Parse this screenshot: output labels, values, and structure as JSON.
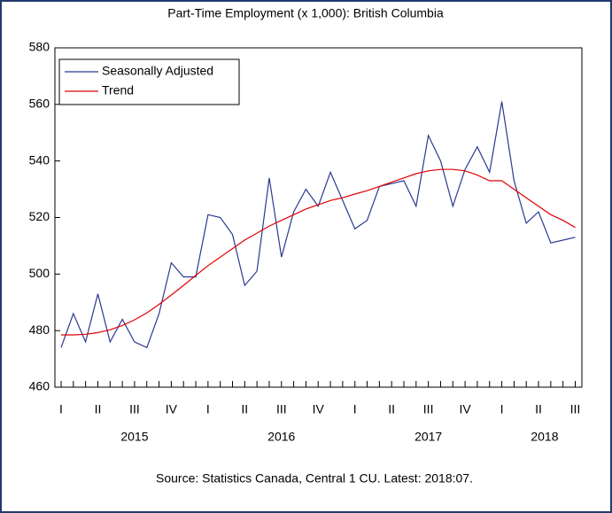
{
  "chart_data": {
    "type": "line",
    "title": "Part-Time Employment (x 1,000): British Columbia",
    "source": "Source: Statistics Canada, Central 1 CU. Latest: 2018:07.",
    "categories": [
      "I",
      null,
      null,
      "II",
      null,
      null,
      "III",
      null,
      null,
      "IV",
      null,
      null,
      "I",
      null,
      null,
      "II",
      null,
      null,
      "III",
      null,
      null,
      "IV",
      null,
      null,
      "I",
      null,
      null,
      "II",
      null,
      null,
      "III",
      null,
      null,
      "IV",
      null,
      null,
      "I",
      null,
      null,
      "II",
      null,
      null,
      "III"
    ],
    "years": [
      "2015",
      "2016",
      "2017",
      "2018"
    ],
    "series": [
      {
        "name": "Seasonally Adjusted",
        "color": "#2b3990",
        "values": [
          474,
          486,
          476,
          493,
          476,
          484,
          476,
          474,
          486,
          504,
          499,
          499,
          521,
          520,
          514,
          496,
          501,
          534,
          506,
          522,
          530,
          524,
          536,
          526,
          516,
          519,
          531,
          532,
          533,
          524,
          549,
          540,
          524,
          537,
          545,
          536,
          561,
          533,
          518,
          522,
          511,
          512,
          513
        ]
      },
      {
        "name": "Trend",
        "color": "#e00000",
        "values": [
          478.5,
          478.5,
          478.7,
          479.3,
          480.3,
          481.8,
          483.8,
          486.3,
          489.3,
          492.6,
          496,
          499.5,
          503,
          506,
          509,
          512,
          514.5,
          517,
          519,
          521,
          523,
          524.5,
          526,
          527,
          528.3,
          529.5,
          531,
          532.5,
          534,
          535.5,
          536.5,
          537,
          537,
          536.5,
          535,
          533,
          533,
          530,
          527,
          524,
          521,
          519,
          516.5
        ]
      }
    ],
    "ylim": [
      460,
      580
    ],
    "yticks": [
      460,
      480,
      500,
      520,
      540,
      560,
      580
    ],
    "grid": false,
    "legend": "upper left"
  }
}
